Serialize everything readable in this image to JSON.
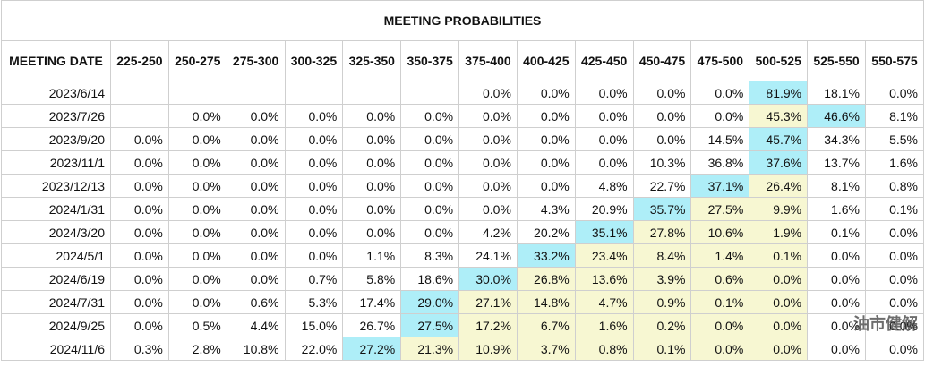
{
  "table": {
    "title": "MEETING PROBABILITIES",
    "headers": [
      "MEETING DATE",
      "225-250",
      "250-275",
      "275-300",
      "300-325",
      "325-350",
      "350-375",
      "375-400",
      "400-425",
      "425-450",
      "450-475",
      "475-500",
      "500-525",
      "525-550",
      "550-575"
    ],
    "current_range": "500-525",
    "colors": {
      "max": "#aeeef8",
      "range": "#f7f7d2"
    },
    "rows": [
      [
        "2023/6/14",
        null,
        null,
        null,
        null,
        null,
        null,
        "0.0%",
        "0.0%",
        "0.0%",
        "0.0%",
        "0.0%",
        "81.9%",
        "18.1%",
        "0.0%"
      ],
      [
        "2023/7/26",
        null,
        "0.0%",
        "0.0%",
        "0.0%",
        "0.0%",
        "0.0%",
        "0.0%",
        "0.0%",
        "0.0%",
        "0.0%",
        "0.0%",
        "45.3%",
        "46.6%",
        "8.1%"
      ],
      [
        "2023/9/20",
        "0.0%",
        "0.0%",
        "0.0%",
        "0.0%",
        "0.0%",
        "0.0%",
        "0.0%",
        "0.0%",
        "0.0%",
        "0.0%",
        "14.5%",
        "45.7%",
        "34.3%",
        "5.5%"
      ],
      [
        "2023/11/1",
        "0.0%",
        "0.0%",
        "0.0%",
        "0.0%",
        "0.0%",
        "0.0%",
        "0.0%",
        "0.0%",
        "0.0%",
        "10.3%",
        "36.8%",
        "37.6%",
        "13.7%",
        "1.6%"
      ],
      [
        "2023/12/13",
        "0.0%",
        "0.0%",
        "0.0%",
        "0.0%",
        "0.0%",
        "0.0%",
        "0.0%",
        "0.0%",
        "4.8%",
        "22.7%",
        "37.1%",
        "26.4%",
        "8.1%",
        "0.8%"
      ],
      [
        "2024/1/31",
        "0.0%",
        "0.0%",
        "0.0%",
        "0.0%",
        "0.0%",
        "0.0%",
        "0.0%",
        "4.3%",
        "20.9%",
        "35.7%",
        "27.5%",
        "9.9%",
        "1.6%",
        "0.1%"
      ],
      [
        "2024/3/20",
        "0.0%",
        "0.0%",
        "0.0%",
        "0.0%",
        "0.0%",
        "0.0%",
        "4.2%",
        "20.2%",
        "35.1%",
        "27.8%",
        "10.6%",
        "1.9%",
        "0.1%",
        "0.0%"
      ],
      [
        "2024/5/1",
        "0.0%",
        "0.0%",
        "0.0%",
        "0.0%",
        "1.1%",
        "8.3%",
        "24.1%",
        "33.2%",
        "23.4%",
        "8.4%",
        "1.4%",
        "0.1%",
        "0.0%",
        "0.0%"
      ],
      [
        "2024/6/19",
        "0.0%",
        "0.0%",
        "0.0%",
        "0.7%",
        "5.8%",
        "18.6%",
        "30.0%",
        "26.8%",
        "13.6%",
        "3.9%",
        "0.6%",
        "0.0%",
        "0.0%",
        "0.0%"
      ],
      [
        "2024/7/31",
        "0.0%",
        "0.0%",
        "0.6%",
        "5.3%",
        "17.4%",
        "29.0%",
        "27.1%",
        "14.8%",
        "4.7%",
        "0.9%",
        "0.1%",
        "0.0%",
        "0.0%",
        "0.0%"
      ],
      [
        "2024/9/25",
        "0.0%",
        "0.5%",
        "4.4%",
        "15.0%",
        "26.7%",
        "27.5%",
        "17.2%",
        "6.7%",
        "1.6%",
        "0.2%",
        "0.0%",
        "0.0%",
        "0.0%",
        "0.0%"
      ],
      [
        "2024/11/6",
        "0.3%",
        "2.8%",
        "10.8%",
        "22.0%",
        "27.2%",
        "21.3%",
        "10.9%",
        "3.7%",
        "0.8%",
        "0.1%",
        "0.0%",
        "0.0%",
        "0.0%",
        "0.0%"
      ]
    ],
    "watermark": "油市健解"
  }
}
